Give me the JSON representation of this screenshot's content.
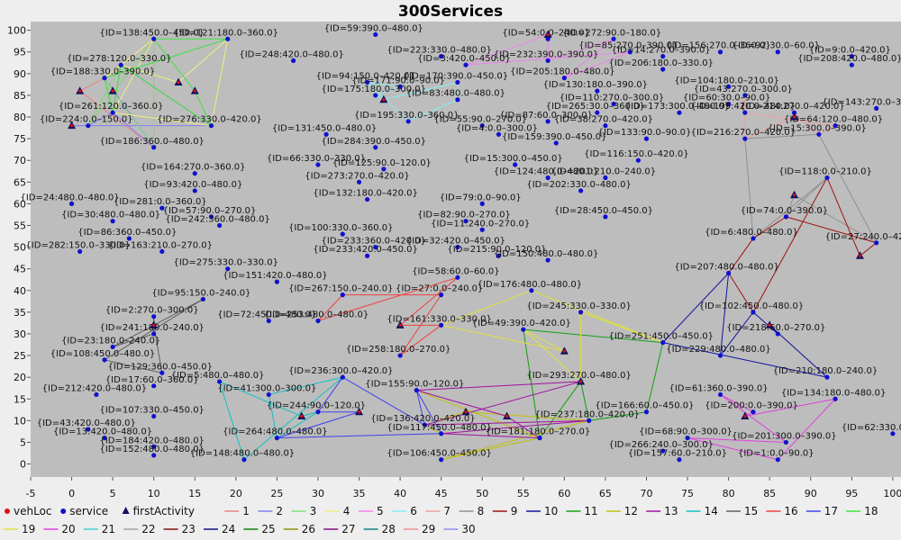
{
  "chart_data": {
    "type": "scatter",
    "title": "300Services",
    "xlabel": "",
    "ylabel": "",
    "xlim": [
      -5,
      101
    ],
    "ylim": [
      -3,
      102
    ],
    "xticks": [
      -5,
      0,
      5,
      10,
      15,
      20,
      25,
      30,
      35,
      40,
      45,
      50,
      55,
      60,
      65,
      70,
      75,
      80,
      85,
      90,
      95,
      100
    ],
    "yticks": [
      0,
      5,
      10,
      15,
      20,
      25,
      30,
      35,
      40,
      45,
      50,
      55,
      60,
      65,
      70,
      75,
      80,
      85,
      90,
      95,
      100
    ],
    "grid": false,
    "legend_position": "bottom",
    "legend": [
      {
        "label": "vehLoc",
        "marker": "circle",
        "color": "#e01010"
      },
      {
        "label": "service",
        "marker": "circle",
        "color": "#1010d0"
      },
      {
        "label": "firstActivity",
        "marker": "triangle",
        "color": "#101060"
      },
      {
        "label": "1",
        "color": "#f08080"
      },
      {
        "label": "2",
        "color": "#8080f0"
      },
      {
        "label": "3",
        "color": "#80e080"
      },
      {
        "label": "4",
        "color": "#f0f080"
      },
      {
        "label": "5",
        "color": "#f080f0"
      },
      {
        "label": "6",
        "color": "#80f0f0"
      },
      {
        "label": "7",
        "color": "#f0a0a0"
      },
      {
        "label": "8",
        "color": "#909090"
      },
      {
        "label": "9",
        "color": "#a01010"
      },
      {
        "label": "10",
        "color": "#1010a0"
      },
      {
        "label": "11",
        "color": "#10a010"
      },
      {
        "label": "12",
        "color": "#c0c010"
      },
      {
        "label": "13",
        "color": "#a010a0"
      },
      {
        "label": "14",
        "color": "#10c0c0"
      },
      {
        "label": "15",
        "color": "#606060"
      },
      {
        "label": "16",
        "color": "#f04040"
      },
      {
        "label": "17",
        "color": "#4040f0"
      },
      {
        "label": "18",
        "color": "#40e040"
      },
      {
        "label": "19",
        "color": "#e0e040"
      },
      {
        "label": "20",
        "color": "#e040e0"
      },
      {
        "label": "21",
        "color": "#40d0d0"
      },
      {
        "label": "22",
        "color": "#a0a0a0"
      },
      {
        "label": "23",
        "color": "#801010"
      },
      {
        "label": "24",
        "color": "#101080"
      },
      {
        "label": "25",
        "color": "#108010"
      },
      {
        "label": "26",
        "color": "#909010"
      },
      {
        "label": "27",
        "color": "#801080"
      },
      {
        "label": "28",
        "color": "#108080"
      },
      {
        "label": "29",
        "color": "#f09090"
      },
      {
        "label": "30",
        "color": "#9090f0"
      }
    ],
    "services": [
      {
        "label": "{ID=138:450.0–450.0}",
        "x": 10,
        "y": 98
      },
      {
        "label": "{ID=121:180.0–360.0}",
        "x": 19,
        "y": 98
      },
      {
        "label": "{ID=59:390.0–480.0}",
        "x": 37,
        "y": 99
      },
      {
        "label": "{ID=54:0.0–240.0}",
        "x": 58,
        "y": 98
      },
      {
        "label": "{ID=272:90.0–180.0}",
        "x": 66,
        "y": 98
      },
      {
        "label": "{ID=85:270.0–390.0}",
        "x": 68,
        "y": 95
      },
      {
        "label": "{ID=156:270.0–360.0}",
        "x": 79,
        "y": 95
      },
      {
        "label": "{ID=92:30.0–60.0}",
        "x": 86,
        "y": 95
      },
      {
        "label": "{ID=9:0.0–420.0}",
        "x": 95,
        "y": 94
      },
      {
        "label": "{ID=248:420.0–480.0}",
        "x": 27,
        "y": 93
      },
      {
        "label": "{ID=223:330.0–480.0}",
        "x": 45,
        "y": 94
      },
      {
        "label": "{ID=14:270.0–390.0}",
        "x": 72,
        "y": 94
      },
      {
        "label": "{ID=208:420.0–480.0}",
        "x": 95,
        "y": 92
      },
      {
        "label": "{ID=232:390.0–390.0}",
        "x": 58,
        "y": 93
      },
      {
        "label": "{ID=206:180.0–330.0}",
        "x": 72,
        "y": 91
      },
      {
        "label": "{ID=205:180.0–480.0}",
        "x": 60,
        "y": 89
      },
      {
        "label": "{ID=3:420.0–450.0}",
        "x": 48,
        "y": 92
      },
      {
        "label": "{ID=94:150.0–420.0}",
        "x": 36,
        "y": 88
      },
      {
        "label": "{ID=170:390.0–450.0}",
        "x": 47,
        "y": 88
      },
      {
        "label": "{ID=104:180.0–210.0}",
        "x": 80,
        "y": 87
      },
      {
        "label": "{ID=278:120.0–330.0}",
        "x": 6,
        "y": 92
      },
      {
        "label": "{ID=188:330.0–390.0}",
        "x": 4,
        "y": 89
      },
      {
        "label": "{ID=171:90.0–90.0}",
        "x": 40,
        "y": 87
      },
      {
        "label": "{ID=130:180.0–390.0}",
        "x": 64,
        "y": 86
      },
      {
        "label": "{ID=43:270.0–300.0}",
        "x": 82,
        "y": 85
      },
      {
        "label": "{ID=175:180.0–300.0}",
        "x": 37,
        "y": 85
      },
      {
        "label": "{ID=83:480.0–480.0}",
        "x": 47,
        "y": 84
      },
      {
        "label": "{ID=110:270.0–300.0}",
        "x": 66,
        "y": 83
      },
      {
        "label": "{ID=60:30.0–90.0}",
        "x": 80,
        "y": 83
      },
      {
        "label": "{ID=143:270.0–300.0}",
        "x": 98,
        "y": 82
      },
      {
        "label": "{ID=214:270.0–420.0}",
        "x": 88,
        "y": 81
      },
      {
        "label": "{ID=261:120.0–360.0}",
        "x": 5,
        "y": 81
      },
      {
        "label": "{ID=265:30.0–360.0}",
        "x": 64,
        "y": 81
      },
      {
        "label": "{ID=173:300.0–480.0}",
        "x": 74,
        "y": 81
      },
      {
        "label": "{ID=199:420.0–480.0}",
        "x": 82,
        "y": 81
      },
      {
        "label": "{ID=224:0.0–150.0}",
        "x": 2,
        "y": 78
      },
      {
        "label": "{ID=195:330.0–360.0}",
        "x": 41,
        "y": 79
      },
      {
        "label": "{ID=55:90.0–270.0}",
        "x": 50,
        "y": 78
      },
      {
        "label": "{ID=87:60.0–300.0}",
        "x": 58,
        "y": 79
      },
      {
        "label": "{ID=64:120.0–480.0}",
        "x": 93,
        "y": 78
      },
      {
        "label": "{ID=276:330.0–420.0}",
        "x": 17,
        "y": 78
      },
      {
        "label": "{ID=131:450.0–480.0}",
        "x": 31,
        "y": 76
      },
      {
        "label": "{ID=4:0.0–300.0}",
        "x": 52,
        "y": 76
      },
      {
        "label": "{ID=38:270.0–420.0}",
        "x": 65,
        "y": 78
      },
      {
        "label": "{ID=133:90.0–90.0}",
        "x": 70,
        "y": 75
      },
      {
        "label": "{ID=216:270.0–420.0}",
        "x": 82,
        "y": 75
      },
      {
        "label": "{ID=15:300.0–390.0}",
        "x": 91,
        "y": 76
      },
      {
        "label": "{ID=186:360.0–480.0}",
        "x": 10,
        "y": 73
      },
      {
        "label": "{ID=284:390.0–450.0}",
        "x": 37,
        "y": 73
      },
      {
        "label": "{ID=159:390.0–450.0}",
        "x": 59,
        "y": 74
      },
      {
        "label": "{ID=116:150.0–420.0}",
        "x": 69,
        "y": 70
      },
      {
        "label": "{ID=66:330.0–330.0}",
        "x": 30,
        "y": 69
      },
      {
        "label": "{ID=15:300.0–450.0}",
        "x": 54,
        "y": 69
      },
      {
        "label": "{ID=164:270.0–360.0}",
        "x": 15,
        "y": 67
      },
      {
        "label": "{ID=125:90.0–120.0}",
        "x": 38,
        "y": 68
      },
      {
        "label": "{ID=124:480.0–480.0}",
        "x": 58,
        "y": 66
      },
      {
        "label": "{ID=201:210.0–240.0}",
        "x": 65,
        "y": 66
      },
      {
        "label": "{ID=118:0.0–210.0}",
        "x": 92,
        "y": 66
      },
      {
        "label": "{ID=273:270.0–420.0}",
        "x": 35,
        "y": 65
      },
      {
        "label": "{ID=93:420.0–480.0}",
        "x": 15,
        "y": 63
      },
      {
        "label": "{ID=202:330.0–480.0}",
        "x": 62,
        "y": 63
      },
      {
        "label": "{ID=132:180.0–420.0}",
        "x": 36,
        "y": 61
      },
      {
        "label": "{ID=79:0.0–90.0}",
        "x": 50,
        "y": 60
      },
      {
        "label": "{ID=24:480.0–480.0}",
        "x": 0,
        "y": 60
      },
      {
        "label": "{ID=281:0.0–360.0}",
        "x": 11,
        "y": 59
      },
      {
        "label": "{ID=57:90.0–270.0}",
        "x": 17,
        "y": 57
      },
      {
        "label": "{ID=30:480.0–480.0}",
        "x": 5,
        "y": 56
      },
      {
        "label": "{ID=242:360.0–480.0}",
        "x": 18,
        "y": 55
      },
      {
        "label": "{ID=28:450.0–450.0}",
        "x": 65,
        "y": 57
      },
      {
        "label": "{ID=82:90.0–270.0}",
        "x": 48,
        "y": 56
      },
      {
        "label": "{ID=11:240.0–270.0}",
        "x": 50,
        "y": 54
      },
      {
        "label": "{ID=74:0.0–390.0}",
        "x": 87,
        "y": 57
      },
      {
        "label": "{ID=86:360.0–450.0}",
        "x": 7,
        "y": 52
      },
      {
        "label": "{ID=100:330.0–360.0}",
        "x": 33,
        "y": 53
      },
      {
        "label": "{ID=233:360.0–420.0}",
        "x": 37,
        "y": 50
      },
      {
        "label": "{ID=6:480.0–480.0}",
        "x": 83,
        "y": 52
      },
      {
        "label": "{ID=282:150.0–330.0}",
        "x": 1,
        "y": 49
      },
      {
        "label": "{ID=163:210.0–270.0}",
        "x": 11,
        "y": 49
      },
      {
        "label": "{ID=32:420.0–450.0}",
        "x": 47,
        "y": 50
      },
      {
        "label": "{ID=215:90.0–120.0}",
        "x": 52,
        "y": 48
      },
      {
        "label": "{ID=233:420.0–450.0}",
        "x": 36,
        "y": 48
      },
      {
        "label": "{ID=150:480.0–480.0}",
        "x": 58,
        "y": 47
      },
      {
        "label": "{ID=27:240.0–420.0}",
        "x": 98,
        "y": 51
      },
      {
        "label": "{ID=275:330.0–330.0}",
        "x": 19,
        "y": 45
      },
      {
        "label": "{ID=58:60.0–60.0}",
        "x": 47,
        "y": 43
      },
      {
        "label": "{ID=151:420.0–480.0}",
        "x": 25,
        "y": 42
      },
      {
        "label": "{ID=176:480.0–480.0}",
        "x": 56,
        "y": 40
      },
      {
        "label": "{ID=207:480.0–480.0}",
        "x": 80,
        "y": 44
      },
      {
        "label": "{ID=95:150.0–240.0}",
        "x": 16,
        "y": 38
      },
      {
        "label": "{ID=267:150.0–240.0}",
        "x": 33,
        "y": 39
      },
      {
        "label": "{ID=27:0.0–240.0}",
        "x": 45,
        "y": 39
      },
      {
        "label": "{ID=2:270.0–300.0}",
        "x": 10,
        "y": 34
      },
      {
        "label": "{ID=72:450.0–480.0}",
        "x": 24,
        "y": 33
      },
      {
        "label": "{ID=253:480.0–480.0}",
        "x": 30,
        "y": 33
      },
      {
        "label": "{ID=245:330.0–330.0}",
        "x": 62,
        "y": 35
      },
      {
        "label": "{ID=102:450.0–480.0}",
        "x": 83,
        "y": 35
      },
      {
        "label": "{ID=161:330.0–330.0}",
        "x": 45,
        "y": 32
      },
      {
        "label": "{ID=49:390.0–420.0}",
        "x": 55,
        "y": 31
      },
      {
        "label": "{ID=218:60.0–270.0}",
        "x": 86,
        "y": 30
      },
      {
        "label": "{ID=241:180.0–240.0}",
        "x": 10,
        "y": 30
      },
      {
        "label": "{ID=23:180.0–240.0}",
        "x": 5,
        "y": 27
      },
      {
        "label": "{ID=251:450.0–450.0}",
        "x": 72,
        "y": 28
      },
      {
        "label": "{ID=108:450.0–480.0}",
        "x": 4,
        "y": 24
      },
      {
        "label": "{ID=258:180.0–270.0}",
        "x": 40,
        "y": 25
      },
      {
        "label": "{ID=229:480.0–480.0}",
        "x": 79,
        "y": 25
      },
      {
        "label": "{ID=129:360.0–450.0}",
        "x": 11,
        "y": 21
      },
      {
        "label": "{ID=236:300.0–420.0}",
        "x": 33,
        "y": 20
      },
      {
        "label": "{ID=210:180.0–240.0}",
        "x": 92,
        "y": 20
      },
      {
        "label": "{ID=5:480.0–480.0}",
        "x": 18,
        "y": 19
      },
      {
        "label": "{ID=17:60.0–360.0}",
        "x": 10,
        "y": 18
      },
      {
        "label": "{ID=293:270.0–480.0}",
        "x": 62,
        "y": 19
      },
      {
        "label": "{ID=212:420.0–480.0}",
        "x": 3,
        "y": 16
      },
      {
        "label": "{ID=41:300.0–300.0}",
        "x": 24,
        "y": 16
      },
      {
        "label": "{ID=155:90.0–120.0}",
        "x": 42,
        "y": 17
      },
      {
        "label": "{ID=61:360.0–390.0}",
        "x": 79,
        "y": 16
      },
      {
        "label": "{ID=134:180.0–480.0}",
        "x": 93,
        "y": 15
      },
      {
        "label": "{ID=200:0.0–390.0}",
        "x": 83,
        "y": 12
      },
      {
        "label": "{ID=166:60.0–450.0}",
        "x": 70,
        "y": 12
      },
      {
        "label": "{ID=107:330.0–450.0}",
        "x": 10,
        "y": 11
      },
      {
        "label": "{ID=244:90.0–120.0}",
        "x": 30,
        "y": 12
      },
      {
        "label": "{ID=136:420.0–420.0}",
        "x": 43,
        "y": 9
      },
      {
        "label": "{ID=237:180.0–420.0}",
        "x": 63,
        "y": 10
      },
      {
        "label": "{ID=62:330.0–360.0}",
        "x": 100,
        "y": 7
      },
      {
        "label": "{ID=43:420.0–480.0}",
        "x": 2,
        "y": 8
      },
      {
        "label": "{ID=117:450.0–480.0}",
        "x": 45,
        "y": 7
      },
      {
        "label": "{ID=181:180.0–270.0}",
        "x": 57,
        "y": 6
      },
      {
        "label": "{ID=264:480.0–480.0}",
        "x": 25,
        "y": 6
      },
      {
        "label": "{ID=68:90.0–300.0}",
        "x": 75,
        "y": 6
      },
      {
        "label": "{ID=13:420.0–480.0}",
        "x": 4,
        "y": 6
      },
      {
        "label": "{ID=201:300.0–390.0}",
        "x": 87,
        "y": 5
      },
      {
        "label": "{ID=184:420.0–480.0}",
        "x": 10,
        "y": 4
      },
      {
        "label": "{ID=266:240.0–300.0}",
        "x": 72,
        "y": 3
      },
      {
        "label": "{ID=152:480.0–480.0}",
        "x": 10,
        "y": 2
      },
      {
        "label": "{ID=148:480.0–480.0}",
        "x": 21,
        "y": 1
      },
      {
        "label": "{ID=106:450.0–450.0}",
        "x": 45,
        "y": 1
      },
      {
        "label": "{ID=157:60.0–210.0}",
        "x": 74,
        "y": 1
      },
      {
        "label": "{ID=1:0.0–90.0}",
        "x": 86,
        "y": 1
      }
    ],
    "vehicle_starts": [
      {
        "x": 1,
        "y": 86
      },
      {
        "x": 0,
        "y": 78
      },
      {
        "x": 5,
        "y": 86
      },
      {
        "x": 13,
        "y": 88
      },
      {
        "x": 58,
        "y": 99
      },
      {
        "x": 38,
        "y": 84
      },
      {
        "x": 88,
        "y": 80
      },
      {
        "x": 88,
        "y": 62
      },
      {
        "x": 96,
        "y": 48
      },
      {
        "x": 85,
        "y": 32
      },
      {
        "x": 62,
        "y": 19
      },
      {
        "x": 48,
        "y": 12
      },
      {
        "x": 53,
        "y": 11
      },
      {
        "x": 28,
        "y": 11
      },
      {
        "x": 10,
        "y": 32
      },
      {
        "x": 40,
        "y": 32
      },
      {
        "x": 35,
        "y": 12
      },
      {
        "x": 15,
        "y": 86
      },
      {
        "x": 60,
        "y": 26
      },
      {
        "x": 82,
        "y": 11
      }
    ]
  }
}
